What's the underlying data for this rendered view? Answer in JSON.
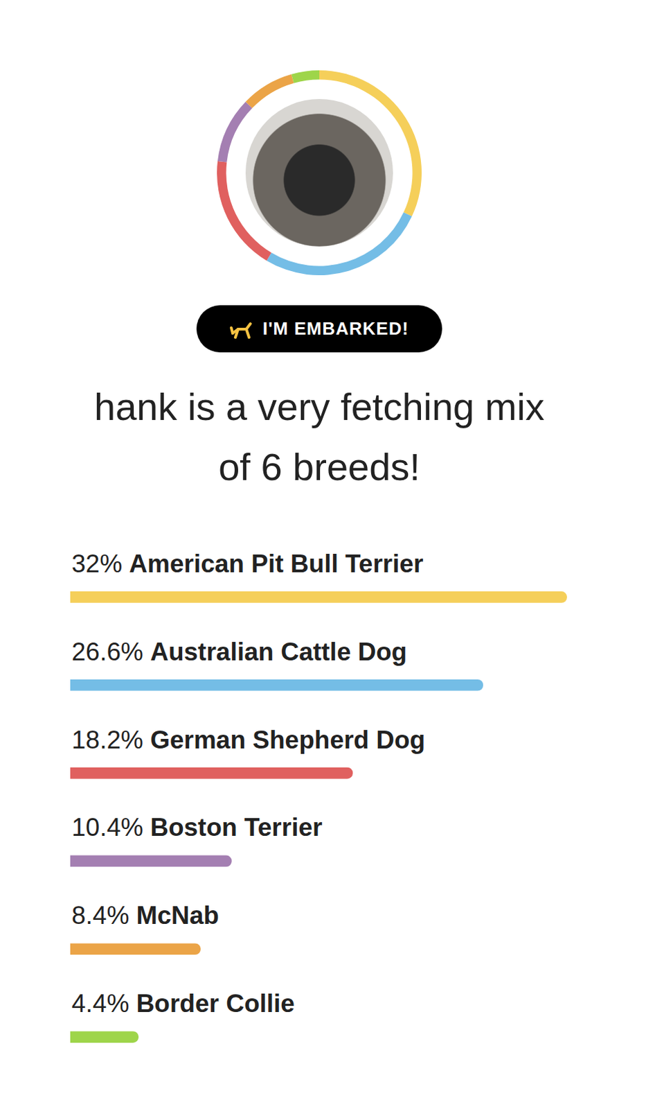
{
  "badge": "I'M EMBARKED!",
  "chart_data": {
    "type": "bar",
    "title": "hank is a very fetching mix of 6 breeds!",
    "orientation": "horizontal",
    "categories": [
      "American Pit Bull Terrier",
      "Australian Cattle Dog",
      "German Shepherd Dog",
      "Boston Terrier",
      "McNab",
      "Border Collie"
    ],
    "values": [
      32,
      26.6,
      18.2,
      10.4,
      8.4,
      4.4
    ],
    "value_labels": [
      "32%",
      "26.6%",
      "18.2%",
      "10.4%",
      "8.4%",
      "4.4%"
    ],
    "colors": [
      "#f5cf5a",
      "#74bde6",
      "#e0605f",
      "#a47fb2",
      "#eba447",
      "#9ed54a"
    ],
    "xlim": [
      0,
      32
    ],
    "data_labels": true,
    "tick_labels": false,
    "grid": false
  }
}
